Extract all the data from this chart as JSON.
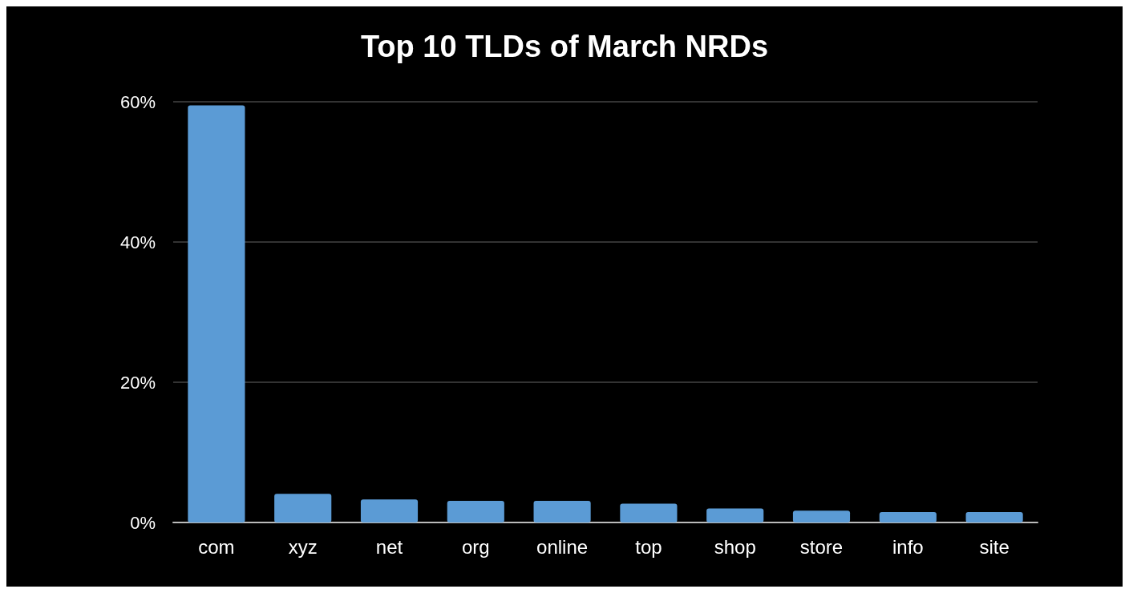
{
  "chart_data": {
    "type": "bar",
    "title": "Top 10 TLDs of March NRDs",
    "categories": [
      "com",
      "xyz",
      "net",
      "org",
      "online",
      "top",
      "shop",
      "store",
      "info",
      "site"
    ],
    "values": [
      59.5,
      4.1,
      3.3,
      3.1,
      3.1,
      2.7,
      2.0,
      1.7,
      1.5,
      1.5
    ],
    "color": "#5b9bd5",
    "ylim": [
      0,
      60
    ],
    "yticks": [
      {
        "value": 0,
        "label": "0%"
      },
      {
        "value": 20,
        "label": "20%"
      },
      {
        "value": 40,
        "label": "40%"
      },
      {
        "value": 60,
        "label": "60%"
      }
    ],
    "grid": "y"
  }
}
